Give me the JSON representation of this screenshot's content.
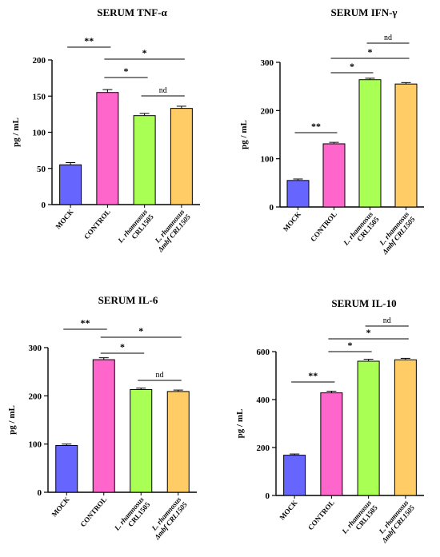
{
  "colors": {
    "MOCK": "#6666ff",
    "CONTROL": "#ff66cc",
    "L.rhamnosus CRL1505": "#aaff55",
    "L.rhamnosus Δmbf CRL1505": "#ffcc66"
  },
  "category_labels": [
    [
      "MOCK"
    ],
    [
      "CONTROL"
    ],
    [
      "L. rhamnosus",
      "CRL1505"
    ],
    [
      "L. rhamnosus",
      "Δmbf CRL1505"
    ]
  ],
  "chart_data": [
    {
      "type": "bar",
      "title": "SERUM TNF-α",
      "ylabel": "pg / mL",
      "categories": [
        "MOCK",
        "CONTROL",
        "L.rhamnosus CRL1505",
        "L.rhamnosus Δmbf CRL1505"
      ],
      "values": [
        55,
        155,
        123,
        133
      ],
      "errors": [
        3,
        4,
        3,
        3
      ],
      "ylim": [
        0,
        200
      ],
      "yticks": [
        0,
        50,
        100,
        150,
        200
      ],
      "annotations": [
        {
          "from": 0,
          "to": 1,
          "label": "**"
        },
        {
          "from": 1,
          "to": 3,
          "label": "*"
        },
        {
          "from": 1,
          "to": 2,
          "label": "*"
        },
        {
          "from": 2,
          "to": 3,
          "label": "nd"
        }
      ]
    },
    {
      "type": "bar",
      "title": "SERUM IFN-γ",
      "ylabel": "pg / mL",
      "categories": [
        "MOCK",
        "CONTROL",
        "L.rhamnosus CRL1505",
        "L.rhamnosus Δmbf CRL1505"
      ],
      "values": [
        55,
        131,
        264,
        255
      ],
      "errors": [
        3,
        3,
        3,
        3
      ],
      "ylim": [
        0,
        300
      ],
      "yticks": [
        0,
        100,
        200,
        300
      ],
      "annotations": [
        {
          "from": 0,
          "to": 1,
          "label": "**"
        },
        {
          "from": 1,
          "to": 2,
          "label": "*"
        },
        {
          "from": 1,
          "to": 3,
          "label": "*"
        },
        {
          "from": 2,
          "to": 3,
          "label": "nd"
        }
      ]
    },
    {
      "type": "bar",
      "title": "SERUM IL-6",
      "ylabel": "pg / mL",
      "categories": [
        "MOCK",
        "CONTROL",
        "L.rhamnosus CRL1505",
        "L.rhamnosus Δmbf CRL1505"
      ],
      "values": [
        97,
        275,
        213,
        209
      ],
      "errors": [
        3,
        4,
        3,
        3
      ],
      "ylim": [
        0,
        300
      ],
      "yticks": [
        0,
        100,
        200,
        300
      ],
      "annotations": [
        {
          "from": 0,
          "to": 1,
          "label": "**"
        },
        {
          "from": 1,
          "to": 3,
          "label": "*"
        },
        {
          "from": 1,
          "to": 2,
          "label": "*"
        },
        {
          "from": 2,
          "to": 3,
          "label": "nd"
        }
      ]
    },
    {
      "type": "bar",
      "title": "SERUM IL-10",
      "ylabel": "pg / mL",
      "categories": [
        "MOCK",
        "CONTROL",
        "L.rhamnosus CRL1505",
        "L.rhamnosus Δmbf CRL1505"
      ],
      "values": [
        168,
        428,
        560,
        566
      ],
      "errors": [
        5,
        7,
        8,
        6
      ],
      "ylim": [
        0,
        600
      ],
      "yticks": [
        0,
        200,
        400,
        600
      ],
      "annotations": [
        {
          "from": 0,
          "to": 1,
          "label": "**"
        },
        {
          "from": 1,
          "to": 2,
          "label": "*"
        },
        {
          "from": 1,
          "to": 3,
          "label": "*"
        },
        {
          "from": 2,
          "to": 3,
          "label": "nd"
        }
      ]
    }
  ]
}
